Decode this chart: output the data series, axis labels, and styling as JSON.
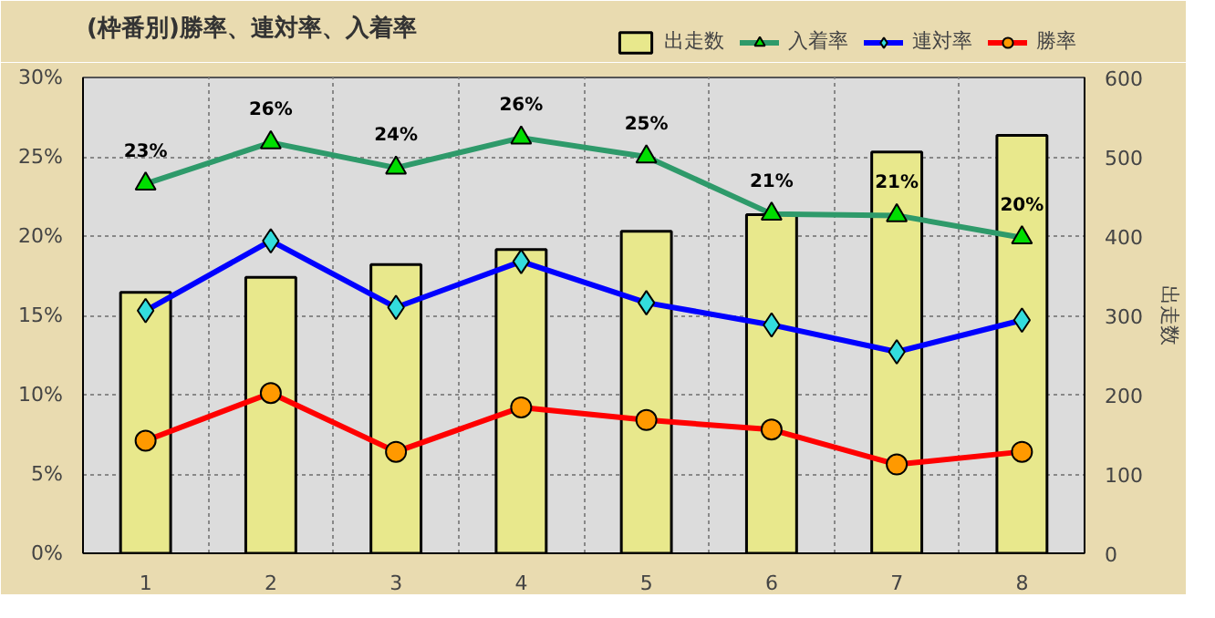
{
  "chart_data": {
    "type": "line",
    "title": "(枠番別)勝率、連対率、入着率",
    "categories": [
      "1",
      "2",
      "3",
      "4",
      "5",
      "6",
      "7",
      "8"
    ],
    "series": [
      {
        "name": "出走数",
        "type": "bar",
        "axis": "y2",
        "color": "#e8e88c",
        "values": [
          329,
          348,
          364,
          383,
          406,
          427,
          506,
          527
        ]
      },
      {
        "name": "入着率",
        "color": "#2e9a6a",
        "marker": "triangle",
        "values": [
          23.3,
          25.9,
          24.3,
          26.2,
          25.0,
          21.4,
          21.3,
          19.9
        ],
        "value_labels": [
          "23%",
          "26%",
          "24%",
          "26%",
          "25%",
          "21%",
          "21%",
          "20%"
        ]
      },
      {
        "name": "連対率",
        "color": "#0000ff",
        "marker": "diamond",
        "values": [
          15.3,
          19.7,
          15.5,
          18.4,
          15.8,
          14.4,
          12.7,
          14.7
        ]
      },
      {
        "name": "勝率",
        "color": "#ff0000",
        "marker": "circle",
        "values": [
          7.1,
          10.1,
          6.4,
          9.2,
          8.4,
          7.8,
          5.6,
          6.4
        ]
      }
    ],
    "ylim": [
      0,
      30
    ],
    "yticks": [
      {
        "value": 0,
        "label": "0%"
      },
      {
        "value": 5,
        "label": "5%"
      },
      {
        "value": 10,
        "label": "10%"
      },
      {
        "value": 15,
        "label": "15%"
      },
      {
        "value": 20,
        "label": "20%"
      },
      {
        "value": 25,
        "label": "25%"
      },
      {
        "value": 30,
        "label": "30%"
      }
    ],
    "y2lim": [
      0,
      600
    ],
    "y2ticks": [
      0,
      100,
      200,
      300,
      400,
      500,
      600
    ],
    "y2label": "出走数",
    "grid": true,
    "legend": "top right"
  }
}
